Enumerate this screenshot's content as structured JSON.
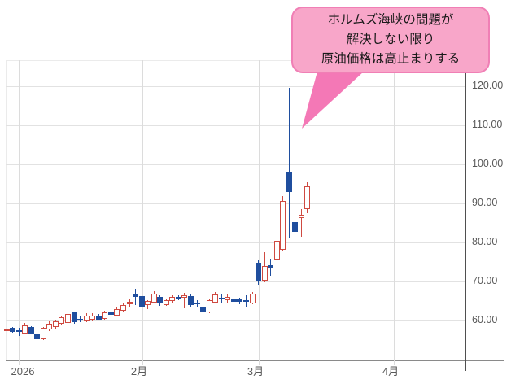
{
  "chart_data": {
    "type": "candlestick",
    "title": "",
    "grid": true,
    "legend": false,
    "y_axis": {
      "side": "right",
      "ylim": [
        50,
        127
      ],
      "ticks": [
        {
          "value": 120,
          "label": "120.00"
        },
        {
          "value": 110,
          "label": "110.00"
        },
        {
          "value": 100,
          "label": "100.00"
        },
        {
          "value": 90,
          "label": "90.00"
        },
        {
          "value": 80,
          "label": "80.00"
        },
        {
          "value": 70,
          "label": "70.00"
        },
        {
          "value": 60,
          "label": "60.00"
        }
      ]
    },
    "x_axis": {
      "ticks": [
        {
          "label": "2026",
          "px": 23
        },
        {
          "label": "2月",
          "px": 175
        },
        {
          "label": "3月",
          "px": 318
        },
        {
          "label": "4月",
          "px": 484
        }
      ]
    },
    "candles_format": [
      "open",
      "high",
      "low",
      "close"
    ],
    "candles": [
      [
        57.5,
        58.4,
        56.9,
        57.8
      ],
      [
        58.1,
        58.4,
        56.8,
        57.1
      ],
      [
        57.6,
        58.2,
        56.0,
        57.3
      ],
      [
        56.7,
        59.4,
        56.4,
        58.8
      ],
      [
        58.3,
        58.6,
        56.4,
        56.7
      ],
      [
        56.7,
        57.1,
        54.9,
        55.2
      ],
      [
        55.2,
        58.4,
        54.9,
        58.1
      ],
      [
        57.7,
        59.7,
        57.3,
        59.2
      ],
      [
        58.3,
        60.3,
        58.0,
        59.8
      ],
      [
        59.2,
        61.2,
        58.9,
        60.8
      ],
      [
        59.4,
        62.1,
        59.1,
        61.6
      ],
      [
        62.0,
        62.3,
        59.2,
        59.5
      ],
      [
        60.5,
        61.1,
        59.6,
        60.3
      ],
      [
        59.8,
        61.8,
        59.6,
        61.3
      ],
      [
        60.2,
        61.8,
        59.8,
        61.3
      ],
      [
        61.3,
        61.7,
        59.9,
        60.2
      ],
      [
        60.4,
        62.4,
        60.2,
        62.0
      ],
      [
        62.1,
        62.5,
        61.0,
        61.4
      ],
      [
        61.3,
        63.6,
        61.0,
        63.0
      ],
      [
        62.5,
        64.5,
        62.3,
        64.0
      ],
      [
        64.2,
        65.5,
        63.3,
        64.7
      ],
      [
        66.6,
        68.1,
        64.0,
        66.1
      ],
      [
        66.3,
        66.8,
        63.0,
        63.6
      ],
      [
        64.0,
        65.3,
        62.9,
        65.0
      ],
      [
        64.6,
        67.5,
        64.4,
        66.9
      ],
      [
        66.0,
        66.4,
        63.8,
        64.6
      ],
      [
        64.0,
        65.7,
        63.7,
        65.2
      ],
      [
        65.0,
        66.4,
        64.6,
        66.0
      ],
      [
        66.0,
        66.4,
        65.3,
        65.7
      ],
      [
        65.8,
        67.0,
        63.1,
        66.5
      ],
      [
        66.3,
        66.6,
        63.6,
        64.0
      ],
      [
        64.6,
        65.3,
        63.3,
        64.3
      ],
      [
        63.5,
        63.8,
        61.7,
        62.0
      ],
      [
        62.1,
        65.7,
        61.9,
        65.2
      ],
      [
        64.6,
        67.2,
        64.4,
        66.6
      ],
      [
        65.9,
        66.8,
        64.4,
        65.6
      ],
      [
        65.2,
        66.9,
        64.6,
        66.1
      ],
      [
        65.7,
        65.9,
        64.3,
        64.7
      ],
      [
        65.6,
        65.9,
        64.2,
        64.7
      ],
      [
        65.3,
        66.4,
        63.5,
        64.8
      ],
      [
        64.4,
        67.2,
        64.1,
        66.8
      ],
      [
        74.7,
        75.4,
        69.2,
        69.9
      ],
      [
        70.2,
        77.5,
        69.8,
        73.9
      ],
      [
        74.1,
        75.9,
        71.5,
        73.4
      ],
      [
        75.4,
        81.6,
        75.0,
        80.4
      ],
      [
        78.2,
        91.8,
        77.8,
        90.7
      ],
      [
        98.0,
        119.5,
        81.3,
        92.9
      ],
      [
        85.3,
        91.1,
        75.8,
        82.7
      ],
      [
        86.3,
        88.6,
        81.5,
        87.0
      ],
      [
        88.6,
        95.5,
        87.6,
        94.3
      ]
    ],
    "colors": {
      "up_candle": "#cf4a41",
      "down_candle": "#1f4e9e",
      "grid": "#e2e2e2",
      "axis": "#4f4f4f",
      "tick_label": "#595959"
    },
    "annotation": {
      "lines": [
        "ホルムズ海峡の問題が",
        "解決しない限り",
        "原油価格は高止まりする"
      ],
      "bubble_fill": "#f8a6c9",
      "bubble_border": "#f07fb5",
      "tail_fill": "#f478b6",
      "points_to": "spike-candle-high"
    }
  }
}
